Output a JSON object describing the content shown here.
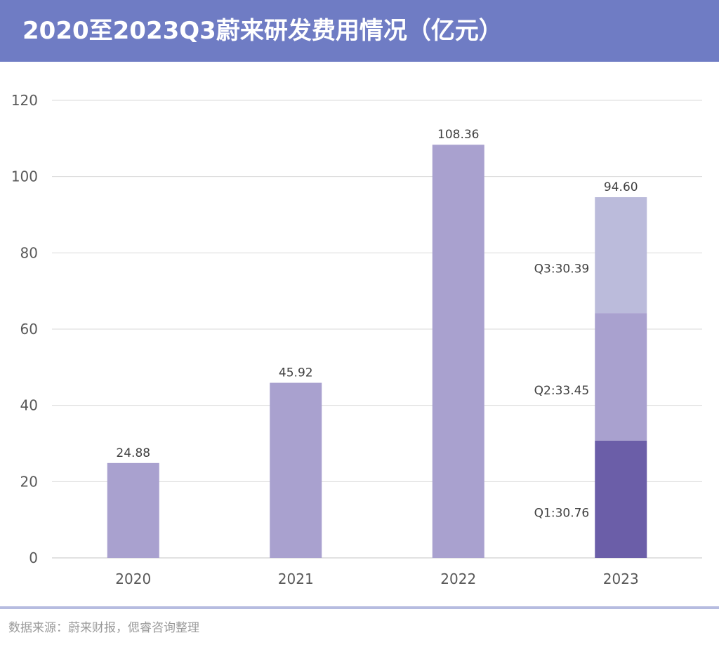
{
  "header": {
    "title": "2020至2023Q3蔚来研发费用情况（亿元）"
  },
  "footer": {
    "source": "数据来源：蔚来财报，偲睿咨询整理"
  },
  "colors": {
    "header_bg": "#6f7cc4",
    "bar": "#a9a1cf",
    "q1": "#6b5ea8",
    "q2": "#a9a1cf",
    "q3": "#bbbbdb",
    "grid": "#d9d9d9",
    "axis_text": "#595959",
    "label_text": "#404040"
  },
  "chart_data": {
    "type": "bar",
    "categories": [
      "2020",
      "2021",
      "2022",
      "2023"
    ],
    "values": [
      24.88,
      45.92,
      108.36,
      94.6
    ],
    "value_labels": [
      "24.88",
      "45.92",
      "108.36",
      "94.60"
    ],
    "stack_2023": [
      {
        "name": "Q1",
        "value": 30.76,
        "label": "Q1:30.76"
      },
      {
        "name": "Q2",
        "value": 33.45,
        "label": "Q2:33.45"
      },
      {
        "name": "Q3",
        "value": 30.39,
        "label": "Q3:30.39"
      }
    ],
    "ylim": [
      0,
      120
    ],
    "yticks": [
      0,
      20,
      40,
      60,
      80,
      100,
      120
    ],
    "grid": true,
    "legend": "none"
  }
}
